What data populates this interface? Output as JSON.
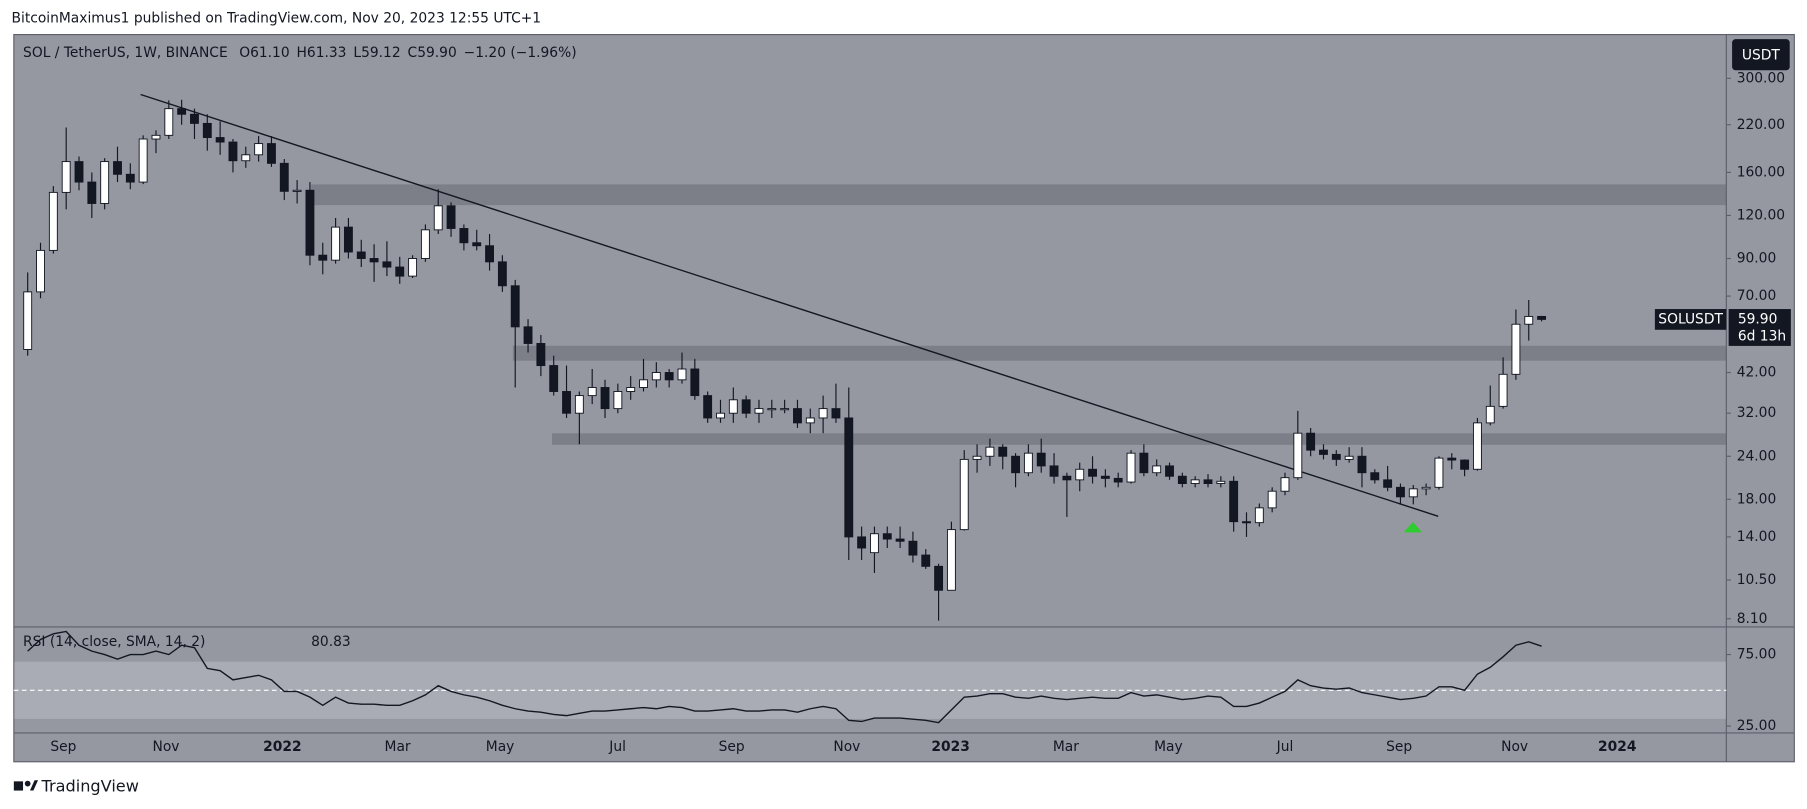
{
  "header": {
    "publisher": "BitcoinMaximus1 published on TradingView.com, Nov 20, 2023 12:55 UTC+1"
  },
  "footer": {
    "brand": "TradingView"
  },
  "chart_data": [
    {
      "type": "candlestick",
      "title": "SOL / TetherUS, 1W, BINANCE",
      "ohlc_legend": [
        {
          "label": "O",
          "value": "61.10"
        },
        {
          "label": "H",
          "value": "61.33"
        },
        {
          "label": "L",
          "value": "59.12"
        },
        {
          "label": "C",
          "value": "59.90"
        }
      ],
      "change": "−1.20 (−1.96%)",
      "currency": "USDT",
      "log_scale": true,
      "up_color": "#ffffff",
      "down_color": "#131722",
      "series": [
        {
          "name": "SOLUSDT",
          "last_label": "59.90",
          "countdown": "6d 13h",
          "open": [
            49,
            72,
            95,
            140,
            172,
            150,
            130,
            172,
            158,
            150,
            200,
            205,
            245,
            236,
            222,
            202,
            196,
            173,
            180,
            194,
            170,
            141,
            142,
            92,
            89,
            111,
            94,
            90,
            88,
            85,
            80,
            90,
            109,
            128,
            110,
            100,
            98,
            88,
            75,
            57,
            51,
            44,
            37,
            32,
            36,
            38,
            33,
            37,
            38,
            40,
            42,
            40,
            43,
            36,
            31,
            32,
            35,
            32,
            33,
            33,
            33,
            30,
            31,
            33,
            31,
            14,
            12.6,
            14.3,
            13.8,
            13.6,
            12.4,
            11.5,
            9.8,
            14.7,
            23.5,
            24,
            25.5,
            24,
            21.5,
            24.5,
            22.5,
            21,
            20.5,
            22,
            21,
            20.7,
            20.2,
            24.5,
            21.5,
            22.5,
            21,
            20,
            20.5,
            20,
            20.3,
            15.5,
            15.4,
            17,
            19,
            20.8,
            28,
            25,
            24.3,
            23.5,
            24,
            21.5,
            20.5,
            19.5,
            18.3,
            19.3,
            19.5,
            23.7,
            23.4,
            22,
            30,
            33.5,
            41.5,
            58,
            61.1
          ],
          "high": [
            82,
            100,
            146,
            216,
            178,
            160,
            176,
            190,
            170,
            205,
            212,
            259,
            260,
            245,
            236,
            225,
            200,
            190,
            204,
            204,
            175,
            152,
            150,
            100,
            118,
            118,
            102,
            99,
            101,
            91,
            92,
            113,
            143,
            131,
            113,
            109,
            106,
            92,
            78,
            60,
            54,
            47,
            44,
            37,
            43,
            40,
            39,
            41,
            46,
            45,
            43,
            48,
            46,
            37,
            35,
            38,
            36,
            35,
            35,
            35,
            35,
            33,
            36,
            39,
            38,
            15,
            15,
            15,
            15,
            14.5,
            12.9,
            11.7,
            15.5,
            25,
            26,
            27,
            26,
            24.5,
            26,
            27,
            24.5,
            21.5,
            23,
            24,
            22,
            21.5,
            25,
            26,
            23.5,
            23,
            21.5,
            21,
            21.3,
            21,
            21,
            16.5,
            17.5,
            19.5,
            21.5,
            32.5,
            29,
            26,
            25,
            25.5,
            25.5,
            22,
            22.5,
            20,
            19.8,
            20,
            24,
            24.5,
            23.5,
            31,
            38.5,
            46.5,
            64,
            68.2,
            61.33
          ],
          "low": [
            47,
            69,
            93,
            125,
            142,
            118,
            125,
            150,
            143,
            148,
            182,
            200,
            220,
            200,
            185,
            180,
            160,
            165,
            172,
            166,
            133,
            130,
            86,
            81,
            87,
            90,
            85,
            77,
            80,
            76,
            79,
            88,
            106,
            104,
            95,
            95,
            83,
            72,
            38,
            48,
            41,
            36,
            31,
            26,
            34,
            31,
            32,
            35,
            37,
            38,
            38,
            39,
            35,
            30,
            30,
            30,
            31,
            30,
            31,
            32,
            29,
            28,
            28,
            30,
            12,
            12,
            11,
            13,
            13,
            11.8,
            11.3,
            8,
            9.8,
            14.6,
            21.5,
            22.5,
            22,
            19.5,
            21,
            21.5,
            20,
            16,
            19,
            20,
            19.5,
            19.5,
            20,
            21,
            21,
            20.5,
            19.5,
            19.5,
            19.5,
            19.5,
            14.5,
            14,
            15,
            16.5,
            18.5,
            20.5,
            24,
            23.5,
            22.5,
            23,
            19.5,
            20,
            19,
            17.5,
            17.4,
            18.5,
            19.2,
            22,
            21,
            21.8,
            29.5,
            33,
            40,
            52,
            59.12
          ],
          "close": [
            72,
            95,
            140,
            172,
            150,
            130,
            172,
            158,
            150,
            200,
            205,
            245,
            236,
            222,
            202,
            196,
            173,
            180,
            194,
            170,
            141,
            142,
            92,
            89,
            111,
            94,
            90,
            88,
            85,
            80,
            90,
            109,
            128,
            110,
            100,
            98,
            88,
            75,
            57,
            51,
            44,
            37,
            32,
            36,
            38,
            33,
            37,
            38,
            40,
            42,
            40,
            43,
            36,
            31,
            32,
            35,
            32,
            33,
            33,
            33,
            30,
            31,
            33,
            31,
            14,
            13,
            14.3,
            13.8,
            13.6,
            12.4,
            11.5,
            9.8,
            14.7,
            23.5,
            24,
            25.5,
            24,
            21.5,
            24.5,
            22.5,
            21,
            20.5,
            22,
            21,
            20.7,
            20.2,
            24.5,
            21.5,
            22.5,
            21,
            20,
            20.5,
            20,
            20.3,
            15.5,
            15.4,
            17,
            19,
            20.8,
            28,
            25,
            24.3,
            23.5,
            24,
            21.5,
            20.5,
            19.5,
            18.3,
            19.3,
            19.5,
            23.7,
            23.4,
            22,
            30,
            33.5,
            41.5,
            58,
            61.1,
            59.9
          ]
        }
      ],
      "xlim": [
        -1.08,
        132.4
      ],
      "xticks": [
        {
          "value": 2.78,
          "label": "Sep"
        },
        {
          "value": 10.78,
          "label": "Nov"
        },
        {
          "value": 19.85,
          "label": "2022"
        },
        {
          "value": 28.83,
          "label": "Mar"
        },
        {
          "value": 36.82,
          "label": "May"
        },
        {
          "value": 45.98,
          "label": "Jul"
        },
        {
          "value": 54.87,
          "label": "Sep"
        },
        {
          "value": 63.85,
          "label": "Nov"
        },
        {
          "value": 71.94,
          "label": "2023"
        },
        {
          "value": 80.92,
          "label": "Mar"
        },
        {
          "value": 88.91,
          "label": "May"
        },
        {
          "value": 98.0,
          "label": "Jul"
        },
        {
          "value": 106.9,
          "label": "Sep"
        },
        {
          "value": 115.9,
          "label": "Nov"
        },
        {
          "value": 123.9,
          "label": "2024"
        }
      ],
      "ylim": [
        7.73,
        402
      ],
      "yticks": [
        {
          "value": 8.1,
          "label": "8.10"
        },
        {
          "value": 10.5,
          "label": "10.50"
        },
        {
          "value": 14,
          "label": "14.00"
        },
        {
          "value": 18,
          "label": "18.00"
        },
        {
          "value": 24,
          "label": "24.00"
        },
        {
          "value": 32,
          "label": "32.00"
        },
        {
          "value": 42,
          "label": "42.00"
        },
        {
          "value": 70,
          "label": "70.00"
        },
        {
          "value": 90,
          "label": "90.00"
        },
        {
          "value": 120,
          "label": "120.00"
        },
        {
          "value": 160,
          "label": "160.00"
        },
        {
          "value": 220,
          "label": "220.00"
        },
        {
          "value": 300,
          "label": "300.00"
        }
      ]
    },
    {
      "type": "line",
      "title": "RSI (14, close, SMA, 14, 2)",
      "color": "#131722",
      "series": [
        {
          "last_label": "80.83",
          "values": [
            77.4,
            85.5,
            89.5,
            91.1,
            81.5,
            77.4,
            75,
            71.8,
            75,
            75,
            77.4,
            75,
            81.5,
            79.8,
            65.3,
            63.7,
            57.3,
            58.9,
            60.5,
            57.3,
            49.2,
            49.2,
            45.2,
            39.5,
            45.2,
            41.1,
            40.3,
            40.3,
            39.5,
            39.5,
            42.7,
            46.8,
            53.2,
            49.2,
            46.8,
            45.2,
            42.7,
            39.5,
            37.1,
            35.5,
            34.7,
            33.1,
            32.3,
            33.9,
            35.5,
            35.5,
            36.3,
            37.1,
            37.9,
            37.1,
            38.7,
            37.9,
            35.5,
            35.5,
            36.3,
            37.1,
            35.5,
            35.5,
            36.3,
            36.3,
            34.7,
            37.1,
            38.7,
            37.1,
            29.0,
            28.2,
            30.6,
            30.6,
            30.6,
            29.8,
            29.0,
            27.4,
            36.3,
            45.2,
            46.0,
            47.6,
            47.6,
            45.2,
            44.4,
            46.0,
            44.4,
            43.5,
            44.4,
            45.2,
            44.4,
            44.4,
            48.4,
            46.0,
            46.8,
            45.2,
            43.5,
            44.4,
            46.0,
            45.2,
            38.7,
            38.7,
            41.1,
            45.2,
            49.2,
            57.3,
            53.2,
            51.6,
            50.8,
            51.6,
            48.4,
            46.8,
            45.2,
            43.5,
            44.4,
            46.0,
            52.4,
            52.4,
            50.0,
            61.3,
            66.1,
            73.4,
            81.5,
            83.9,
            80.83
          ]
        }
      ],
      "band": {
        "upper": 70,
        "lower": 30,
        "middle": 50
      },
      "ylim": [
        21,
        93.5
      ],
      "yticks": [
        {
          "value": 75,
          "label": "75.00"
        },
        {
          "value": 25,
          "label": "25.00"
        }
      ]
    }
  ]
}
